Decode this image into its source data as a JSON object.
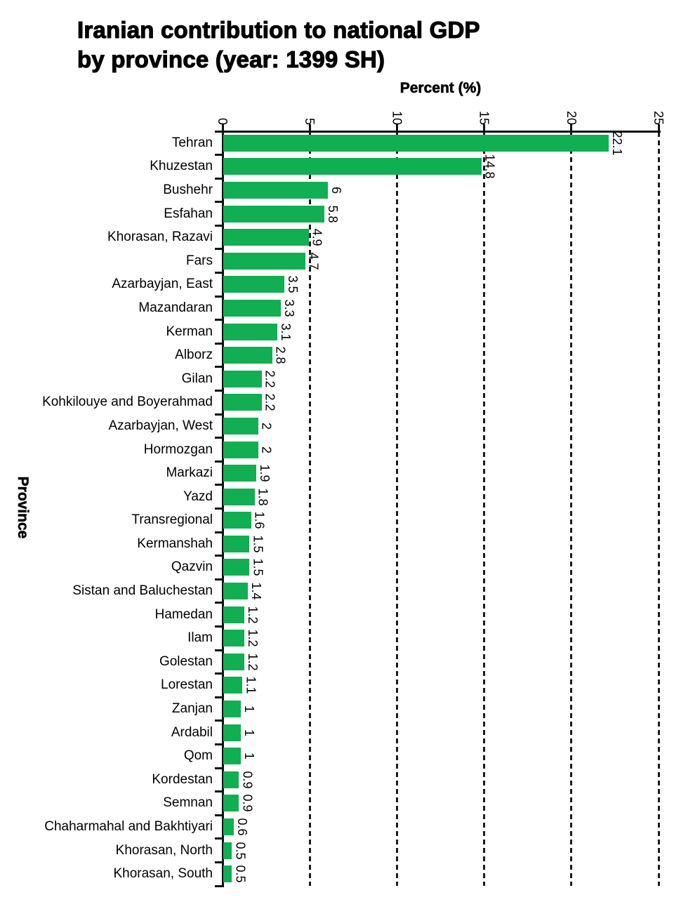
{
  "title": {
    "line1": "Iranian contribution to national GDP",
    "line2": "by province (year: 1399 SH)"
  },
  "chart_data": {
    "type": "bar",
    "orientation": "horizontal",
    "title": "Iranian contribution to national GDP by province (year: 1399 SH)",
    "xlabel": "Percent (%)",
    "ylabel": "Province",
    "xlim": [
      0,
      25
    ],
    "xticks": [
      "0",
      "5",
      "10",
      "15",
      "20",
      "25"
    ],
    "grid": "dashed vertical lines at 5,10,15,20,25",
    "legend": "none",
    "bar_color": "#12AE52",
    "categories": [
      "Tehran",
      "Khuzestan",
      "Bushehr",
      "Esfahan",
      "Khorasan, Razavi",
      "Fars",
      "Azarbayjan, East",
      "Mazandaran",
      "Kerman",
      "Alborz",
      "Gilan",
      "Kohkilouye and Boyerahmad",
      "Azarbayjan, West",
      "Hormozgan",
      "Markazi",
      "Yazd",
      "Transregional",
      "Kermanshah",
      "Qazvin",
      "Sistan and Baluchestan",
      "Hamedan",
      "Ilam",
      "Golestan",
      "Lorestan",
      "Zanjan",
      "Ardabil",
      "Qom",
      "Kordestan",
      "Semnan",
      "Chaharmahal and Bakhtiyari",
      "Khorasan, North",
      "Khorasan, South"
    ],
    "values": [
      22.1,
      14.8,
      6,
      5.8,
      4.9,
      4.7,
      3.5,
      3.3,
      3.1,
      2.8,
      2.2,
      2.2,
      2,
      2,
      1.9,
      1.8,
      1.6,
      1.5,
      1.5,
      1.4,
      1.2,
      1.2,
      1.2,
      1.1,
      1,
      1,
      1,
      0.9,
      0.9,
      0.6,
      0.5,
      0.5
    ],
    "value_labels": [
      "22.1",
      "14.8",
      "6",
      "5.8",
      "4.9",
      "4.7",
      "3.5",
      "3.3",
      "3.1",
      "2.8",
      "2.2",
      "2.2",
      "2",
      "2",
      "1.9",
      "1.8",
      "1.6",
      "1.5",
      "1.5",
      "1.4",
      "1.2",
      "1.2",
      "1.2",
      "1.1",
      "1",
      "1",
      "1",
      "0.9",
      "0.9",
      "0.6",
      "0.5",
      "0.5"
    ]
  }
}
